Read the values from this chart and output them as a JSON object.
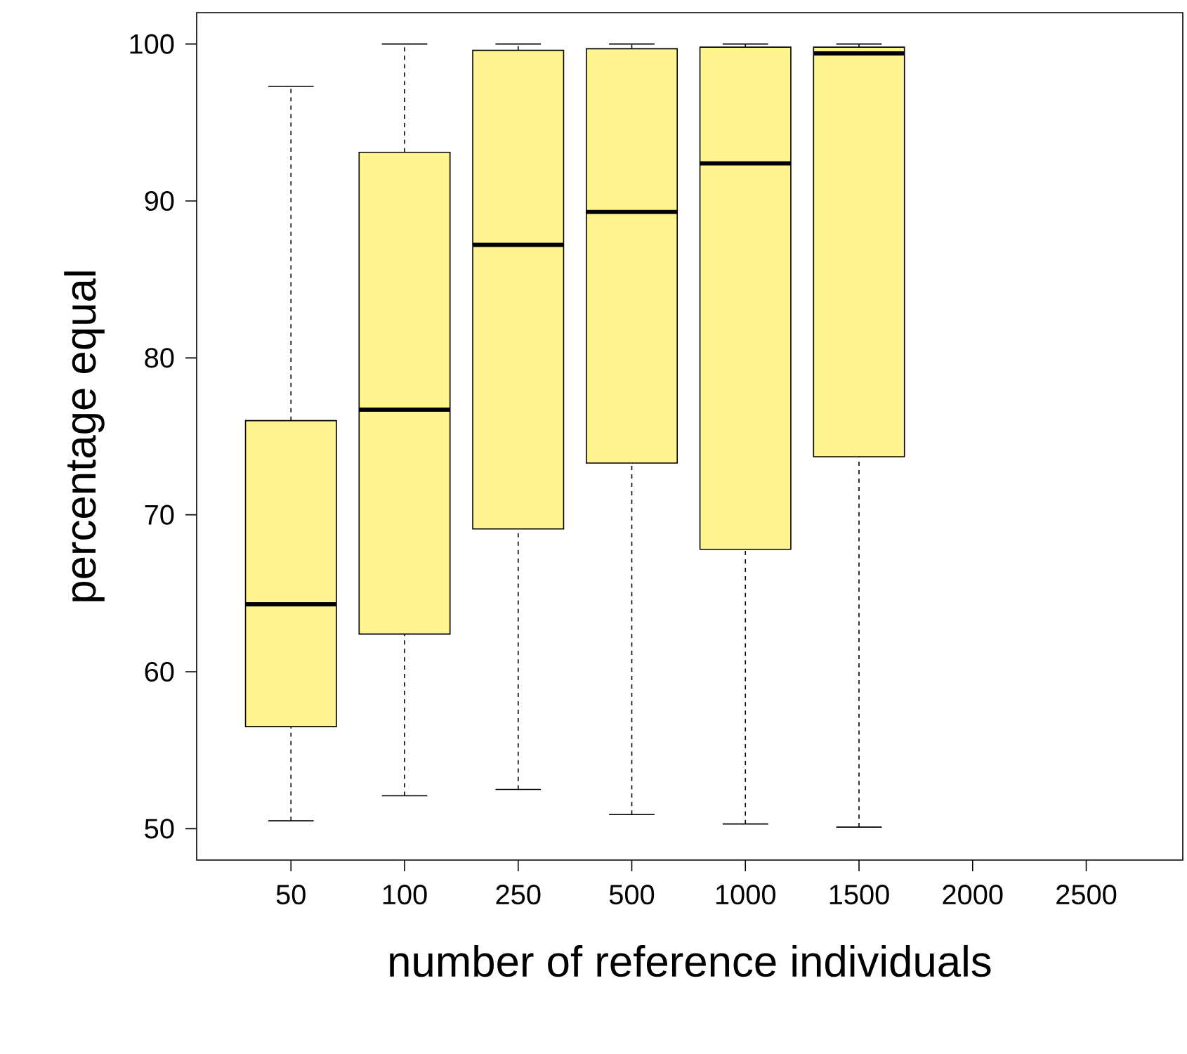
{
  "chart_data": {
    "type": "box",
    "xlabel": "number of reference individuals",
    "ylabel": "percentage equal",
    "categories": [
      "50",
      "100",
      "250",
      "500",
      "1000",
      "1500",
      "2000",
      "2500"
    ],
    "color": "#fff48f",
    "boxes": [
      {
        "low": 50.5,
        "q1": 56.5,
        "median": 64.3,
        "q3": 76.0,
        "high": 97.3
      },
      {
        "low": 52.1,
        "q1": 62.4,
        "median": 76.7,
        "q3": 93.1,
        "high": 100
      },
      {
        "low": 52.5,
        "q1": 69.1,
        "median": 87.2,
        "q3": 99.6,
        "high": 100
      },
      {
        "low": 50.9,
        "q1": 73.3,
        "median": 89.3,
        "q3": 99.7,
        "high": 100
      },
      {
        "low": 50.3,
        "q1": 67.8,
        "median": 92.4,
        "q3": 99.8,
        "high": 100
      },
      {
        "low": 50.1,
        "q1": 73.7,
        "median": 99.4,
        "q3": 99.8,
        "high": 100
      },
      null,
      null
    ],
    "ylim": [
      48,
      102
    ],
    "yticks": [
      50,
      60,
      70,
      80,
      90,
      100
    ]
  }
}
